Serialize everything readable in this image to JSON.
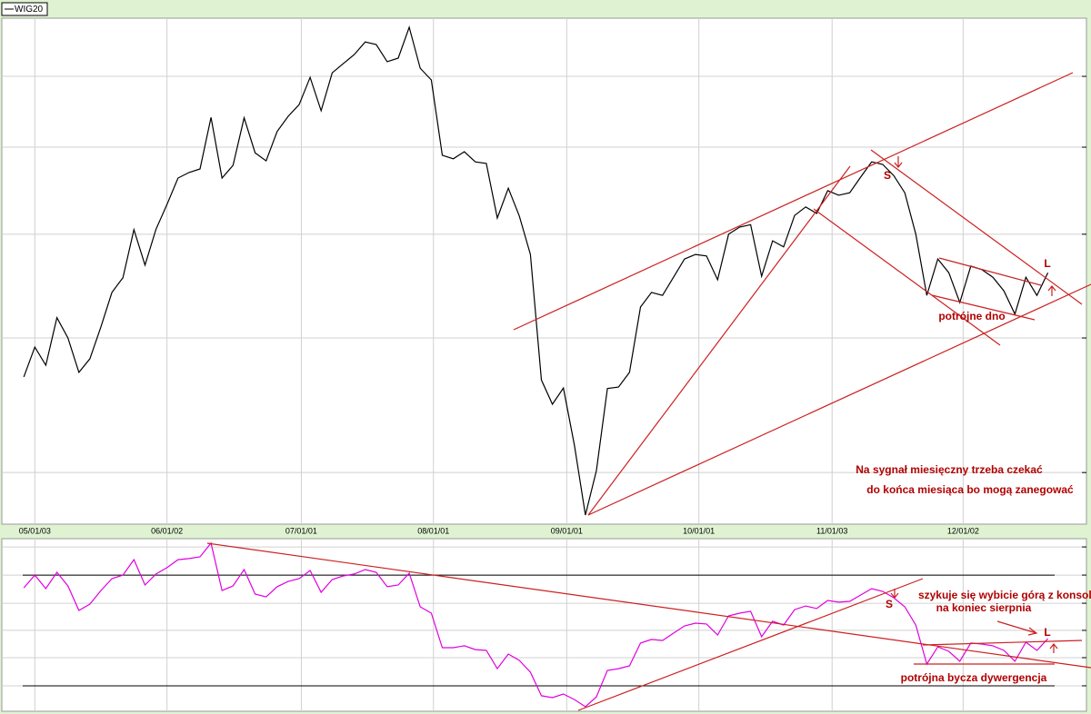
{
  "chart_data": [
    {
      "type": "line",
      "legend": "top-left",
      "series": [
        {
          "name": "WIG20",
          "color": "#000000",
          "values": [
            29.1,
            35.0,
            31.4,
            40.8,
            36.8,
            30.0,
            32.7,
            39.0,
            45.8,
            48.7,
            58.2,
            51.2,
            58.3,
            63.2,
            68.4,
            69.5,
            70.2,
            80.4,
            68.4,
            70.9,
            80.3,
            73.4,
            71.8,
            77.6,
            80.6,
            82.9,
            88.3,
            81.7,
            89.2,
            91.0,
            92.8,
            95.3,
            94.8,
            91.4,
            92.1,
            98.2,
            90.1,
            87.8,
            72.9,
            72.2,
            73.6,
            71.6,
            71.3,
            60.5,
            66.4,
            60.9,
            53.3,
            28.5,
            23.7,
            26.9,
            15.6,
            1.8,
            10.6,
            26.8,
            27.1,
            30.0,
            42.9,
            45.8,
            45.2,
            48.8,
            52.4,
            53.3,
            53.0,
            48.3,
            57.3,
            58.7,
            59.2,
            49.0,
            56.0,
            54.8,
            61.0,
            62.7,
            61.4,
            65.9,
            65.0,
            65.5,
            68.6,
            71.6,
            71.1,
            68.9,
            65.5,
            57.3,
            45.2,
            52.4,
            49.7,
            43.8,
            51.0,
            50.3,
            48.8,
            46.1,
            41.5,
            48.8,
            45.2,
            49.7
          ]
        }
      ],
      "xlim": [
        -2,
        96.5
      ],
      "xticks": [
        {
          "value": 1,
          "label": "05/01/03"
        },
        {
          "value": 13,
          "label": "06/01/02"
        },
        {
          "value": 25.2,
          "label": "07/01/01"
        },
        {
          "value": 37.2,
          "label": "08/01/01"
        },
        {
          "value": 49.3,
          "label": "09/01/01"
        },
        {
          "value": 61.3,
          "label": "10/01/01"
        },
        {
          "value": 73.4,
          "label": "11/01/03"
        },
        {
          "value": 85.3,
          "label": "12/01/02"
        }
      ],
      "ylim": [
        0,
        100
      ],
      "yticks": [
        88.5,
        74.5,
        57.3,
        36.8,
        10.2
      ],
      "grid": true,
      "annotations": [
        "S",
        "L",
        "potrójne dno",
        "Na sygnał miesięczny trzeba czekać",
        "do końca miesiąca bo mogą zanegować"
      ]
    },
    {
      "type": "line",
      "series": [
        {
          "color": "#e000e0",
          "values": [
            71.4,
            78.8,
            70.9,
            80.4,
            72.5,
            58.2,
            61.9,
            69.8,
            76.7,
            78.8,
            87.8,
            73.0,
            79.4,
            83.1,
            87.8,
            88.4,
            89.4,
            97.4,
            69.8,
            72.5,
            82.0,
            67.7,
            66.1,
            72.0,
            75.1,
            76.7,
            81.5,
            68.8,
            76.2,
            78.3,
            79.4,
            82.0,
            80.4,
            72.0,
            73.0,
            79.9,
            60.3,
            56.6,
            36.5,
            36.5,
            37.6,
            35.4,
            34.9,
            24.3,
            32.8,
            29.1,
            22.2,
            8.5,
            7.4,
            9.5,
            6.3,
            2.1,
            7.9,
            23.3,
            24.3,
            25.9,
            39.2,
            41.3,
            40.7,
            45.0,
            49.2,
            50.8,
            50.3,
            43.9,
            55.0,
            56.6,
            57.7,
            42.9,
            51.9,
            49.7,
            58.7,
            60.8,
            59.3,
            64.0,
            63.0,
            63.5,
            67.2,
            70.9,
            69.3,
            65.6,
            60.3,
            49.7,
            27.0,
            37.0,
            34.4,
            28.6,
            39.2,
            38.6,
            37.6,
            34.9,
            28.6,
            39.7,
            34.9,
            41.8
          ]
        }
      ],
      "ylim": [
        0,
        100
      ],
      "yticks": [
        95.2,
        78.8,
        62.4,
        46.6,
        30.7,
        14.3
      ],
      "grid": true,
      "levels": [
        78.8,
        14.3
      ],
      "annotations": [
        "szykuje się wybicie górą z konsoli",
        "na koniec sierpnia",
        "S",
        "L",
        "potrójna bycza dywergencja"
      ]
    }
  ]
}
